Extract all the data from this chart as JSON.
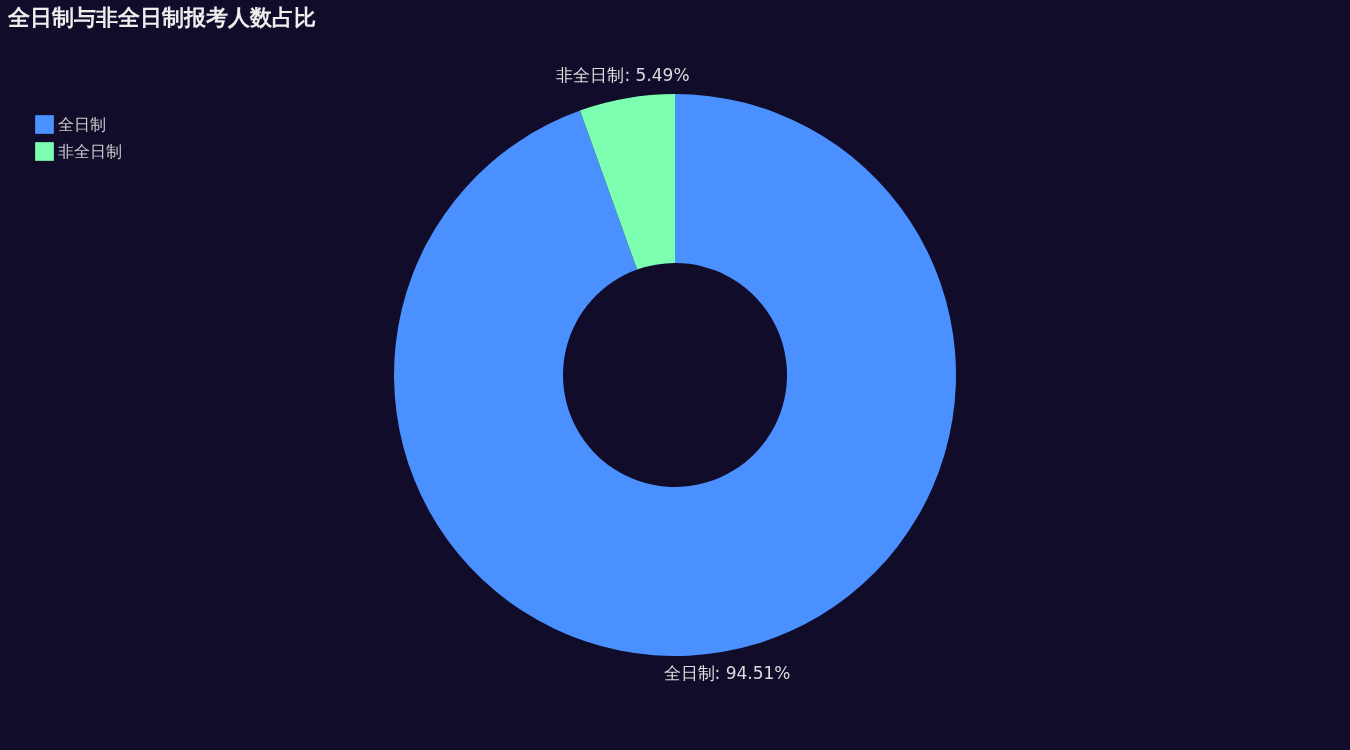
{
  "chart_data": {
    "type": "donut",
    "title": "全日制与非全日制报考人数占比",
    "categories": [
      "全日制",
      "非全日制"
    ],
    "values": [
      94.51,
      5.49
    ],
    "colors": [
      "#4a90ff",
      "#7dffb2"
    ],
    "value_labels": [
      "全日制: 94.51%",
      "非全日制: 5.49%"
    ],
    "legend": "top left"
  }
}
